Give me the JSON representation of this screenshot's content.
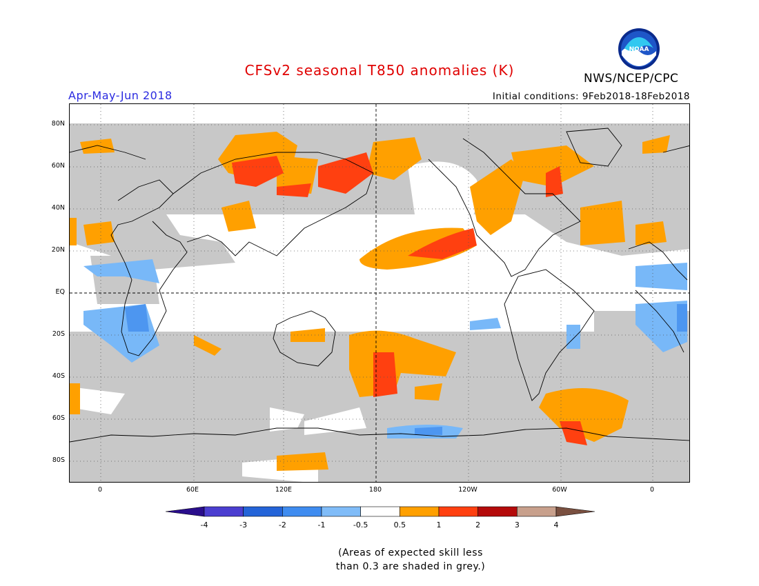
{
  "title": "CFSv2 seasonal T850 anomalies (K)",
  "agency": "NWS/NCEP/CPC",
  "logo_text": "NOAA",
  "season": "Apr-May-Jun 2018",
  "initial_conditions": "Initial conditions: 9Feb2018-18Feb2018",
  "note_line1": "(Areas of expected skill less",
  "note_line2": "than 0.3 are shaded in grey.)",
  "map": {
    "projection": "cylindrical equidistant",
    "lon_range": [
      -20,
      380
    ],
    "lat_range": [
      -90,
      90
    ],
    "lat_ticks": [
      "80N",
      "60N",
      "40N",
      "20N",
      "EQ",
      "20S",
      "40S",
      "60S",
      "80S"
    ],
    "lon_ticks": [
      "0",
      "60E",
      "120E",
      "180",
      "120W",
      "60W",
      "0"
    ],
    "grid": "dotted every 20 degrees, dashed equator and dateline",
    "colors": {
      "grey_low_skill": "#c8c8c8",
      "neutral": "#ffffff",
      "warm_05_1": "#ffa000",
      "warm_1_2": "#ff4010",
      "cool_05_1": "#78b8f8",
      "cool_1_2": "#4d96f0"
    }
  },
  "colorbar": {
    "labels": [
      "-4",
      "-3",
      "-2",
      "-1",
      "-0.5",
      "0.5",
      "1",
      "2",
      "3",
      "4"
    ],
    "colors": [
      "#2a0e8c",
      "#4b3ed0",
      "#2464d8",
      "#3f8cf0",
      "#80bcf8",
      "#ffffff",
      "#ffa000",
      "#ff4010",
      "#b40a0a",
      "#c8a08c",
      "#7a5040"
    ]
  }
}
